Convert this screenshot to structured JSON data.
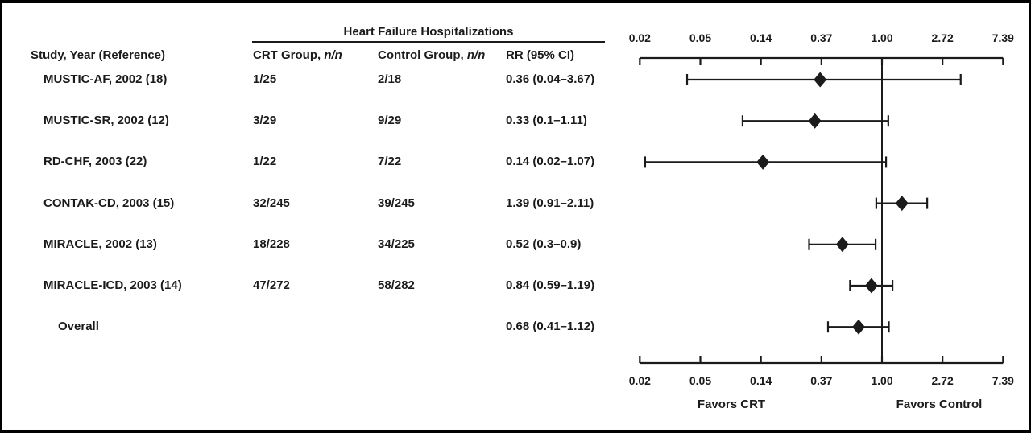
{
  "title": "Heart Failure Hospitalizations",
  "table": {
    "columns": {
      "study": "Study, Year (Reference)",
      "crt": {
        "prefix": "CRT Group, ",
        "italic": "n/n"
      },
      "control": {
        "prefix": "Control Group, ",
        "italic": "n/n"
      },
      "rr": "RR (95% CI)"
    }
  },
  "colors": {
    "ink": "#1b1b1b",
    "background": "#ffffff",
    "border": "#000000"
  },
  "chart_data": {
    "type": "forest",
    "x_scale": "log",
    "xlim": [
      0.02,
      7.39
    ],
    "x_ticks": [
      0.02,
      0.05,
      0.14,
      0.37,
      1.0,
      2.72,
      7.39
    ],
    "x_tick_labels": [
      "0.02",
      "0.05",
      "0.14",
      "0.37",
      "1.00",
      "2.72",
      "7.39"
    ],
    "x_tick_positions_ln": [
      -4,
      -3,
      -2,
      -1,
      0,
      1,
      2
    ],
    "reference_line": 1.0,
    "favors": {
      "left": "Favors CRT",
      "right": "Favors Control"
    },
    "rows": [
      {
        "study": "MUSTIC-AF, 2002 (18)",
        "crt": "1/25",
        "control": "2/18",
        "rr": 0.36,
        "ci_low": 0.04,
        "ci_high": 3.67,
        "rr_label": "0.36 (0.04–3.67)",
        "is_overall": false
      },
      {
        "study": "MUSTIC-SR, 2002 (12)",
        "crt": "3/29",
        "control": "9/29",
        "rr": 0.33,
        "ci_low": 0.1,
        "ci_high": 1.11,
        "rr_label": "0.33 (0.1–1.11)",
        "is_overall": false
      },
      {
        "study": "RD-CHF, 2003 (22)",
        "crt": "1/22",
        "control": "7/22",
        "rr": 0.14,
        "ci_low": 0.02,
        "ci_high": 1.07,
        "rr_label": "0.14 (0.02–1.07)",
        "is_overall": false
      },
      {
        "study": "CONTAK-CD, 2003 (15)",
        "crt": "32/245",
        "control": "39/245",
        "rr": 1.39,
        "ci_low": 0.91,
        "ci_high": 2.11,
        "rr_label": "1.39 (0.91–2.11)",
        "is_overall": false
      },
      {
        "study": "MIRACLE, 2002 (13)",
        "crt": "18/228",
        "control": "34/225",
        "rr": 0.52,
        "ci_low": 0.3,
        "ci_high": 0.9,
        "rr_label": "0.52 (0.3–0.9)",
        "is_overall": false
      },
      {
        "study": "MIRACLE-ICD, 2003 (14)",
        "crt": "47/272",
        "control": "58/282",
        "rr": 0.84,
        "ci_low": 0.59,
        "ci_high": 1.19,
        "rr_label": "0.84 (0.59–1.19)",
        "is_overall": false
      },
      {
        "study": "Overall",
        "crt": "",
        "control": "",
        "rr": 0.68,
        "ci_low": 0.41,
        "ci_high": 1.12,
        "rr_label": "0.68 (0.41–1.12)",
        "is_overall": true
      }
    ]
  }
}
